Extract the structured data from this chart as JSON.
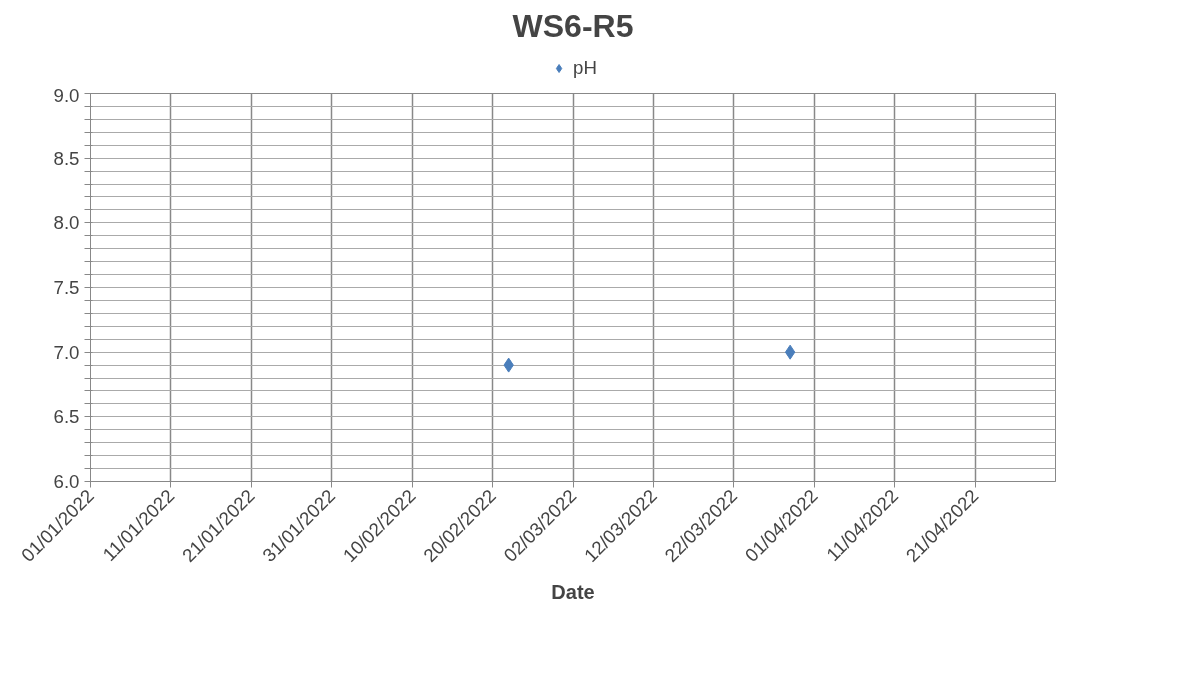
{
  "chart_data": {
    "type": "scatter",
    "title": "WS6-R5",
    "xlabel": "Date",
    "series": [
      {
        "name": "pH",
        "color": "#4a7ebb",
        "x": [
          "2022-02-22",
          "2022-03-29"
        ],
        "values": [
          6.9,
          7.0
        ]
      }
    ],
    "marker": "diamond",
    "legend": "top",
    "grid": true,
    "xlim": [
      "2022-01-01",
      "2022-05-01"
    ],
    "xticks": [
      {
        "value": "2022-01-01",
        "label": "01/01/2022"
      },
      {
        "value": "2022-01-11",
        "label": "11/01/2022"
      },
      {
        "value": "2022-01-21",
        "label": "21/01/2022"
      },
      {
        "value": "2022-01-31",
        "label": "31/01/2022"
      },
      {
        "value": "2022-02-10",
        "label": "10/02/2022"
      },
      {
        "value": "2022-02-20",
        "label": "20/02/2022"
      },
      {
        "value": "2022-03-02",
        "label": "02/03/2022"
      },
      {
        "value": "2022-03-12",
        "label": "12/03/2022"
      },
      {
        "value": "2022-03-22",
        "label": "22/03/2022"
      },
      {
        "value": "2022-04-01",
        "label": "01/04/2022"
      },
      {
        "value": "2022-04-11",
        "label": "11/04/2022"
      },
      {
        "value": "2022-04-21",
        "label": "21/04/2022"
      }
    ],
    "ylim": [
      6.0,
      9.0
    ],
    "yticks": [
      {
        "value": 6.0,
        "label": "6.0"
      },
      {
        "value": 6.1,
        "label": null
      },
      {
        "value": 6.2,
        "label": null
      },
      {
        "value": 6.3,
        "label": null
      },
      {
        "value": 6.4,
        "label": null
      },
      {
        "value": 6.5,
        "label": "6.5"
      },
      {
        "value": 6.6,
        "label": null
      },
      {
        "value": 6.7,
        "label": null
      },
      {
        "value": 6.8,
        "label": null
      },
      {
        "value": 6.9,
        "label": null
      },
      {
        "value": 7.0,
        "label": "7.0"
      },
      {
        "value": 7.1,
        "label": null
      },
      {
        "value": 7.2,
        "label": null
      },
      {
        "value": 7.3,
        "label": null
      },
      {
        "value": 7.4,
        "label": null
      },
      {
        "value": 7.5,
        "label": "7.5"
      },
      {
        "value": 7.6,
        "label": null
      },
      {
        "value": 7.7,
        "label": null
      },
      {
        "value": 7.8,
        "label": null
      },
      {
        "value": 7.9,
        "label": null
      },
      {
        "value": 8.0,
        "label": "8.0"
      },
      {
        "value": 8.1,
        "label": null
      },
      {
        "value": 8.2,
        "label": null
      },
      {
        "value": 8.3,
        "label": null
      },
      {
        "value": 8.4,
        "label": null
      },
      {
        "value": 8.5,
        "label": "8.5"
      },
      {
        "value": 8.6,
        "label": null
      },
      {
        "value": 8.7,
        "label": null
      },
      {
        "value": 8.8,
        "label": null
      },
      {
        "value": 8.9,
        "label": null
      },
      {
        "value": 9.0,
        "label": "9.0"
      }
    ]
  }
}
